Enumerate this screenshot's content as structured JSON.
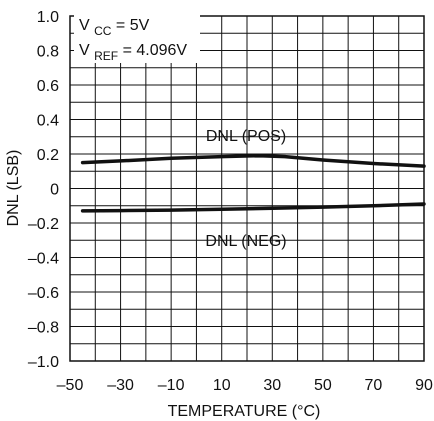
{
  "chart_data": {
    "type": "line",
    "xlabel": "TEMPERATURE (°C)",
    "ylabel": "DNL (LSB)",
    "xlim": [
      -50,
      90
    ],
    "ylim": [
      -1.0,
      1.0
    ],
    "grid": true,
    "x_ticks": [
      -50,
      -30,
      -10,
      10,
      30,
      50,
      70,
      90
    ],
    "x_tick_labels": [
      "–50",
      "–30",
      "–10",
      "10",
      "30",
      "50",
      "70",
      "90"
    ],
    "y_ticks": [
      1.0,
      0.8,
      0.6,
      0.4,
      0.2,
      0,
      -0.2,
      -0.4,
      -0.6,
      -0.8,
      -1.0
    ],
    "y_tick_labels": [
      "1.0",
      "0.8",
      "0.6",
      "0.4",
      "0.2",
      "0",
      "–0.2",
      "–0.4",
      "–0.6",
      "–0.8",
      "–1.0"
    ],
    "series": [
      {
        "name": "DNL (POS)",
        "x": [
          -45,
          -30,
          -10,
          10,
          25,
          35,
          50,
          70,
          90
        ],
        "y": [
          0.15,
          0.16,
          0.175,
          0.185,
          0.19,
          0.185,
          0.165,
          0.145,
          0.13
        ]
      },
      {
        "name": "DNL (NEG)",
        "x": [
          -45,
          -30,
          -10,
          10,
          30,
          50,
          70,
          90
        ],
        "y": [
          -0.13,
          -0.128,
          -0.125,
          -0.12,
          -0.115,
          -0.108,
          -0.1,
          -0.09
        ]
      }
    ],
    "annotations": {
      "condition_vcc": {
        "base": "V",
        "sub": "CC",
        "rest": " = 5V"
      },
      "condition_vref": {
        "base": "V",
        "sub": "REF",
        "rest": " = 4.096V"
      }
    },
    "colors": {
      "line": "#111111",
      "grid": "#111111",
      "background": "#ffffff"
    }
  }
}
